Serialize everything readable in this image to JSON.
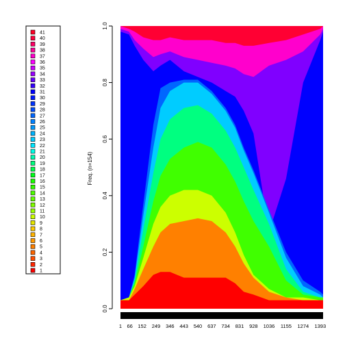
{
  "chart_data": {
    "type": "area",
    "stacked": true,
    "ylabel": "Freq. (n=154)",
    "ylim": [
      0,
      1
    ],
    "yticks": [
      "0.0",
      "0.2",
      "0.4",
      "0.6",
      "0.8",
      "1.0"
    ],
    "x_range": [
      1,
      1413
    ],
    "xticks": [
      {
        "value": 1,
        "label": "1"
      },
      {
        "value": 66,
        "label": "66"
      },
      {
        "value": 152,
        "label": "152"
      },
      {
        "value": 249,
        "label": "249"
      },
      {
        "value": 346,
        "label": "346"
      },
      {
        "value": 443,
        "label": "443"
      },
      {
        "value": 540,
        "label": "540"
      },
      {
        "value": 637,
        "label": "637"
      },
      {
        "value": 734,
        "label": "734"
      },
      {
        "value": 831,
        "label": "831"
      },
      {
        "value": 928,
        "label": "928"
      },
      {
        "value": 1036,
        "label": "1036"
      },
      {
        "value": 1155,
        "label": "1155"
      },
      {
        "value": 1274,
        "label": "1274"
      },
      {
        "value": 1393,
        "label": "1393"
      }
    ],
    "legend": {
      "placement": "left",
      "entries": [
        "41",
        "40",
        "39",
        "38",
        "37",
        "36",
        "35",
        "34",
        "33",
        "32",
        "31",
        "30",
        "29",
        "28",
        "27",
        "26",
        "25",
        "24",
        "23",
        "22",
        "21",
        "20",
        "19",
        "18",
        "17",
        "16",
        "15",
        "14",
        "13",
        "12",
        "11",
        "10",
        "9",
        "8",
        "7",
        "6",
        "5",
        "4",
        "3",
        "2",
        "1"
      ]
    },
    "series": [
      {
        "group": "1-3 (red)",
        "color": "#FF0000",
        "x": [
          1,
          60,
          100,
          160,
          230,
          280,
          346,
          443,
          540,
          637,
          734,
          800,
          860,
          928,
          1036,
          1155,
          1274,
          1393,
          1413
        ],
        "cumulative_top": [
          0.03,
          0.03,
          0.05,
          0.08,
          0.12,
          0.13,
          0.13,
          0.11,
          0.11,
          0.11,
          0.11,
          0.09,
          0.06,
          0.05,
          0.03,
          0.03,
          0.03,
          0.03,
          0.03
        ]
      },
      {
        "group": "4-8 (orange)",
        "color": "#FF8000",
        "x": [
          1,
          60,
          100,
          160,
          230,
          280,
          346,
          443,
          540,
          637,
          734,
          800,
          860,
          928,
          1036,
          1155,
          1274,
          1393,
          1413
        ],
        "cumulative_top": [
          0.03,
          0.03,
          0.07,
          0.14,
          0.22,
          0.27,
          0.3,
          0.31,
          0.32,
          0.31,
          0.27,
          0.22,
          0.16,
          0.11,
          0.06,
          0.04,
          0.03,
          0.03,
          0.03
        ]
      },
      {
        "group": "9-12 (yellow)",
        "color": "#CCFF00",
        "x": [
          1,
          60,
          100,
          160,
          230,
          280,
          346,
          443,
          540,
          637,
          734,
          800,
          860,
          928,
          1036,
          1155,
          1274,
          1393,
          1413
        ],
        "cumulative_top": [
          0.03,
          0.04,
          0.08,
          0.18,
          0.3,
          0.36,
          0.4,
          0.42,
          0.42,
          0.4,
          0.34,
          0.27,
          0.19,
          0.12,
          0.07,
          0.04,
          0.04,
          0.03,
          0.03
        ]
      },
      {
        "group": "13-18 (green)",
        "color": "#40FF00",
        "x": [
          1,
          60,
          100,
          160,
          230,
          280,
          346,
          443,
          540,
          637,
          734,
          800,
          860,
          928,
          1036,
          1155,
          1274,
          1393,
          1413
        ],
        "cumulative_top": [
          0.03,
          0.04,
          0.09,
          0.22,
          0.38,
          0.47,
          0.53,
          0.57,
          0.59,
          0.57,
          0.51,
          0.45,
          0.38,
          0.31,
          0.22,
          0.1,
          0.05,
          0.04,
          0.04
        ]
      },
      {
        "group": "19-22 (mint)",
        "color": "#00FF80",
        "x": [
          1,
          60,
          100,
          160,
          230,
          280,
          346,
          443,
          540,
          637,
          734,
          800,
          860,
          928,
          1036,
          1155,
          1274,
          1393,
          1413
        ],
        "cumulative_top": [
          0.03,
          0.04,
          0.1,
          0.28,
          0.48,
          0.6,
          0.67,
          0.71,
          0.72,
          0.69,
          0.63,
          0.57,
          0.5,
          0.42,
          0.3,
          0.14,
          0.06,
          0.04,
          0.04
        ]
      },
      {
        "group": "23-26 (cyan)",
        "color": "#00CCFF",
        "x": [
          1,
          60,
          100,
          160,
          230,
          280,
          346,
          443,
          540,
          637,
          734,
          800,
          860,
          928,
          1036,
          1155,
          1274,
          1393,
          1413
        ],
        "cumulative_top": [
          0.03,
          0.04,
          0.11,
          0.33,
          0.57,
          0.71,
          0.77,
          0.8,
          0.8,
          0.76,
          0.7,
          0.64,
          0.56,
          0.48,
          0.34,
          0.18,
          0.08,
          0.05,
          0.04
        ]
      },
      {
        "group": "27-28 (light blue)",
        "color": "#0066FF",
        "x": [
          1,
          60,
          100,
          160,
          230,
          280,
          346,
          443,
          540,
          637,
          734,
          800,
          860,
          928,
          1036,
          1155,
          1274,
          1393,
          1413
        ],
        "cumulative_top": [
          0.03,
          0.04,
          0.12,
          0.37,
          0.65,
          0.78,
          0.8,
          0.81,
          0.81,
          0.77,
          0.71,
          0.65,
          0.57,
          0.49,
          0.35,
          0.2,
          0.1,
          0.06,
          0.05
        ]
      },
      {
        "group": "29-33 (blue)",
        "color": "#0000FF",
        "x": [
          1,
          60,
          100,
          160,
          230,
          280,
          346,
          443,
          540,
          637,
          734,
          800,
          860,
          928,
          1036,
          1155,
          1274,
          1393,
          1413
        ],
        "cumulative_top": [
          0.98,
          0.97,
          0.93,
          0.88,
          0.84,
          0.86,
          0.88,
          0.84,
          0.82,
          0.8,
          0.77,
          0.75,
          0.7,
          0.62,
          0.27,
          0.46,
          0.8,
          0.95,
          0.98
        ]
      },
      {
        "group": "34-36 (purple)",
        "color": "#8000FF",
        "x": [
          1,
          60,
          100,
          160,
          230,
          280,
          346,
          443,
          540,
          637,
          734,
          800,
          860,
          928,
          1036,
          1155,
          1274,
          1393,
          1413
        ],
        "cumulative_top": [
          0.99,
          0.98,
          0.95,
          0.92,
          0.89,
          0.9,
          0.91,
          0.89,
          0.88,
          0.87,
          0.86,
          0.85,
          0.83,
          0.82,
          0.86,
          0.88,
          0.91,
          0.97,
          0.99
        ]
      },
      {
        "group": "37-39 (magenta)",
        "color": "#FF00CC",
        "x": [
          1,
          60,
          100,
          160,
          230,
          280,
          346,
          443,
          540,
          637,
          734,
          800,
          860,
          928,
          1036,
          1155,
          1274,
          1393,
          1413
        ],
        "cumulative_top": [
          1.0,
          0.99,
          0.98,
          0.96,
          0.95,
          0.95,
          0.96,
          0.95,
          0.95,
          0.95,
          0.94,
          0.94,
          0.93,
          0.93,
          0.94,
          0.95,
          0.97,
          0.99,
          1.0
        ]
      },
      {
        "group": "40-41 (crimson)",
        "color": "#FF0033",
        "x": [
          1,
          60,
          100,
          160,
          230,
          280,
          346,
          443,
          540,
          637,
          734,
          800,
          860,
          928,
          1036,
          1155,
          1274,
          1393,
          1413
        ],
        "cumulative_top": [
          1.0,
          1.0,
          1.0,
          1.0,
          1.0,
          1.0,
          1.0,
          1.0,
          1.0,
          1.0,
          1.0,
          1.0,
          1.0,
          1.0,
          1.0,
          1.0,
          1.0,
          1.0,
          1.0
        ]
      }
    ],
    "legend_colors": {
      "41": "#FF0026",
      "40": "#FF003B",
      "39": "#FF0066",
      "38": "#FF0099",
      "37": "#FF00CC",
      "36": "#FF00FF",
      "35": "#CC00FF",
      "34": "#9900FF",
      "33": "#6600FF",
      "32": "#3300FF",
      "31": "#0000FF",
      "30": "#0019FF",
      "29": "#0033FF",
      "28": "#004DFF",
      "27": "#0066FF",
      "26": "#0080FF",
      "25": "#0099FF",
      "24": "#00B3FF",
      "23": "#00CCFF",
      "22": "#00E6FF",
      "21": "#00FFE6",
      "20": "#00FFB3",
      "19": "#00FF80",
      "18": "#00FF4D",
      "17": "#00FF1A",
      "16": "#1AFF00",
      "15": "#33FF00",
      "14": "#4DFF00",
      "13": "#66FF00",
      "12": "#80FF00",
      "11": "#99FF00",
      "10": "#CCFF00",
      "9": "#E6E600",
      "8": "#FFCC00",
      "7": "#FFB300",
      "6": "#FF9900",
      "5": "#FF8000",
      "4": "#FF6600",
      "3": "#FF4D00",
      "2": "#FF2600",
      "1": "#FF0000"
    },
    "grid": false
  }
}
